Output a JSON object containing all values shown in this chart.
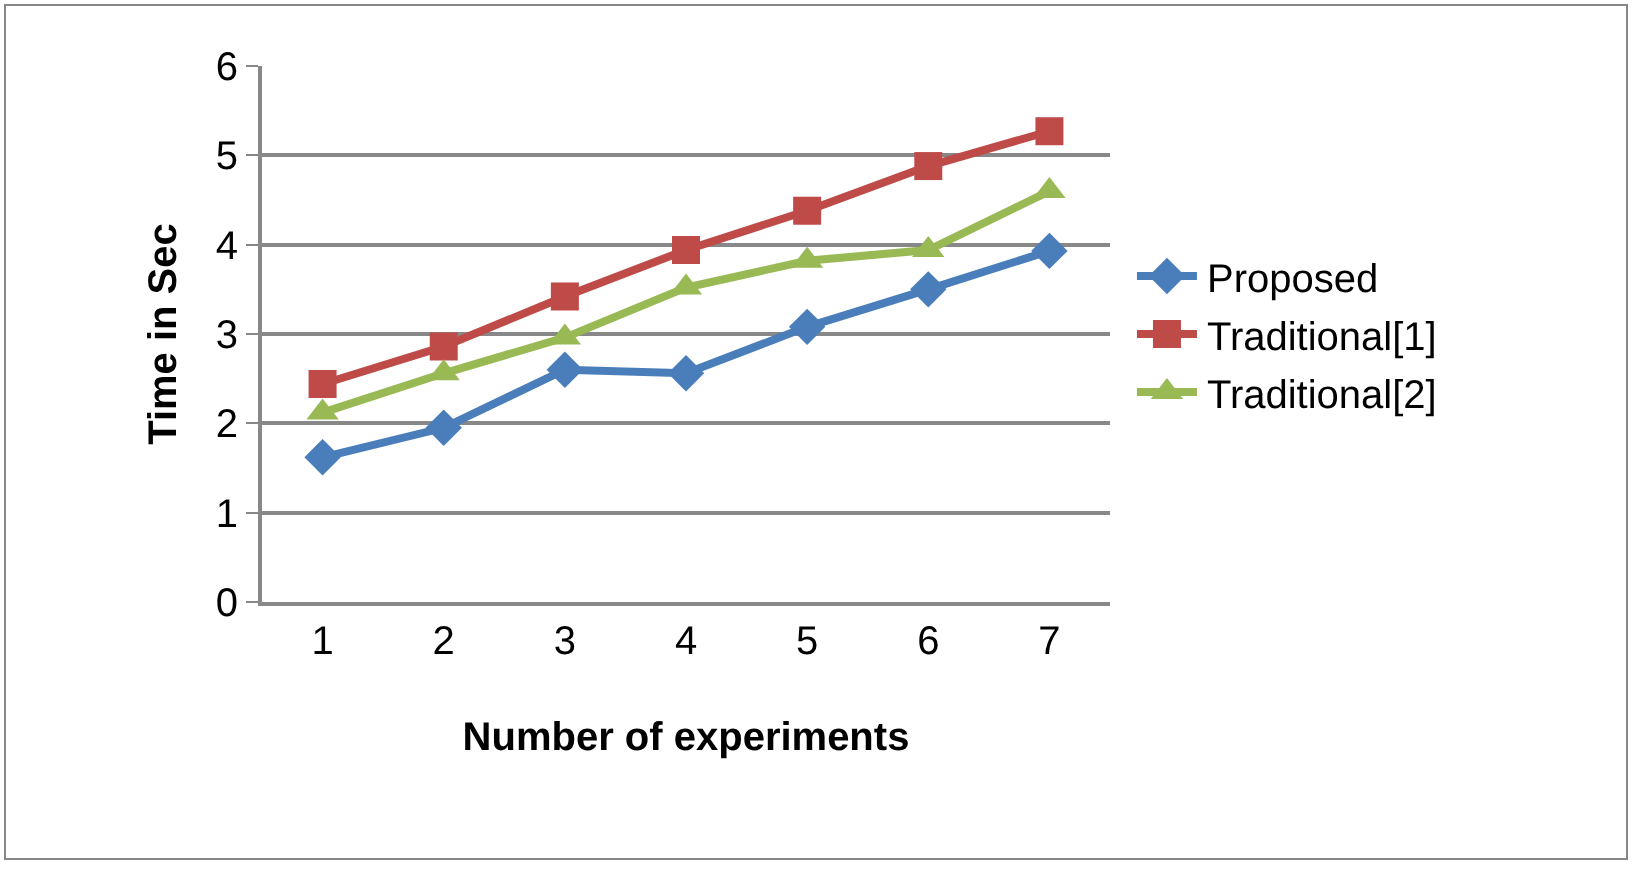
{
  "chart_data": {
    "type": "line",
    "xlabel": "Number of experiments",
    "ylabel": "Time in Sec",
    "categories": [
      "1",
      "2",
      "3",
      "4",
      "5",
      "6",
      "7"
    ],
    "series": [
      {
        "name": "Proposed",
        "color": "#4a7ebb",
        "marker": "diamond",
        "values": [
          1.62,
          1.95,
          2.6,
          2.56,
          3.08,
          3.5,
          3.93
        ]
      },
      {
        "name": "Traditional[1]",
        "color": "#be4b48",
        "marker": "square",
        "values": [
          2.44,
          2.86,
          3.42,
          3.94,
          4.38,
          4.88,
          5.27
        ]
      },
      {
        "name": "Traditional[2]",
        "color": "#98b954",
        "marker": "triangle",
        "values": [
          2.12,
          2.56,
          2.96,
          3.52,
          3.82,
          3.94,
          4.6
        ]
      }
    ],
    "ylim": [
      0,
      6
    ],
    "yticks": [
      0,
      1,
      2,
      3,
      4,
      5,
      6
    ],
    "grid": "y",
    "legend": "right",
    "line_style": "solid"
  }
}
